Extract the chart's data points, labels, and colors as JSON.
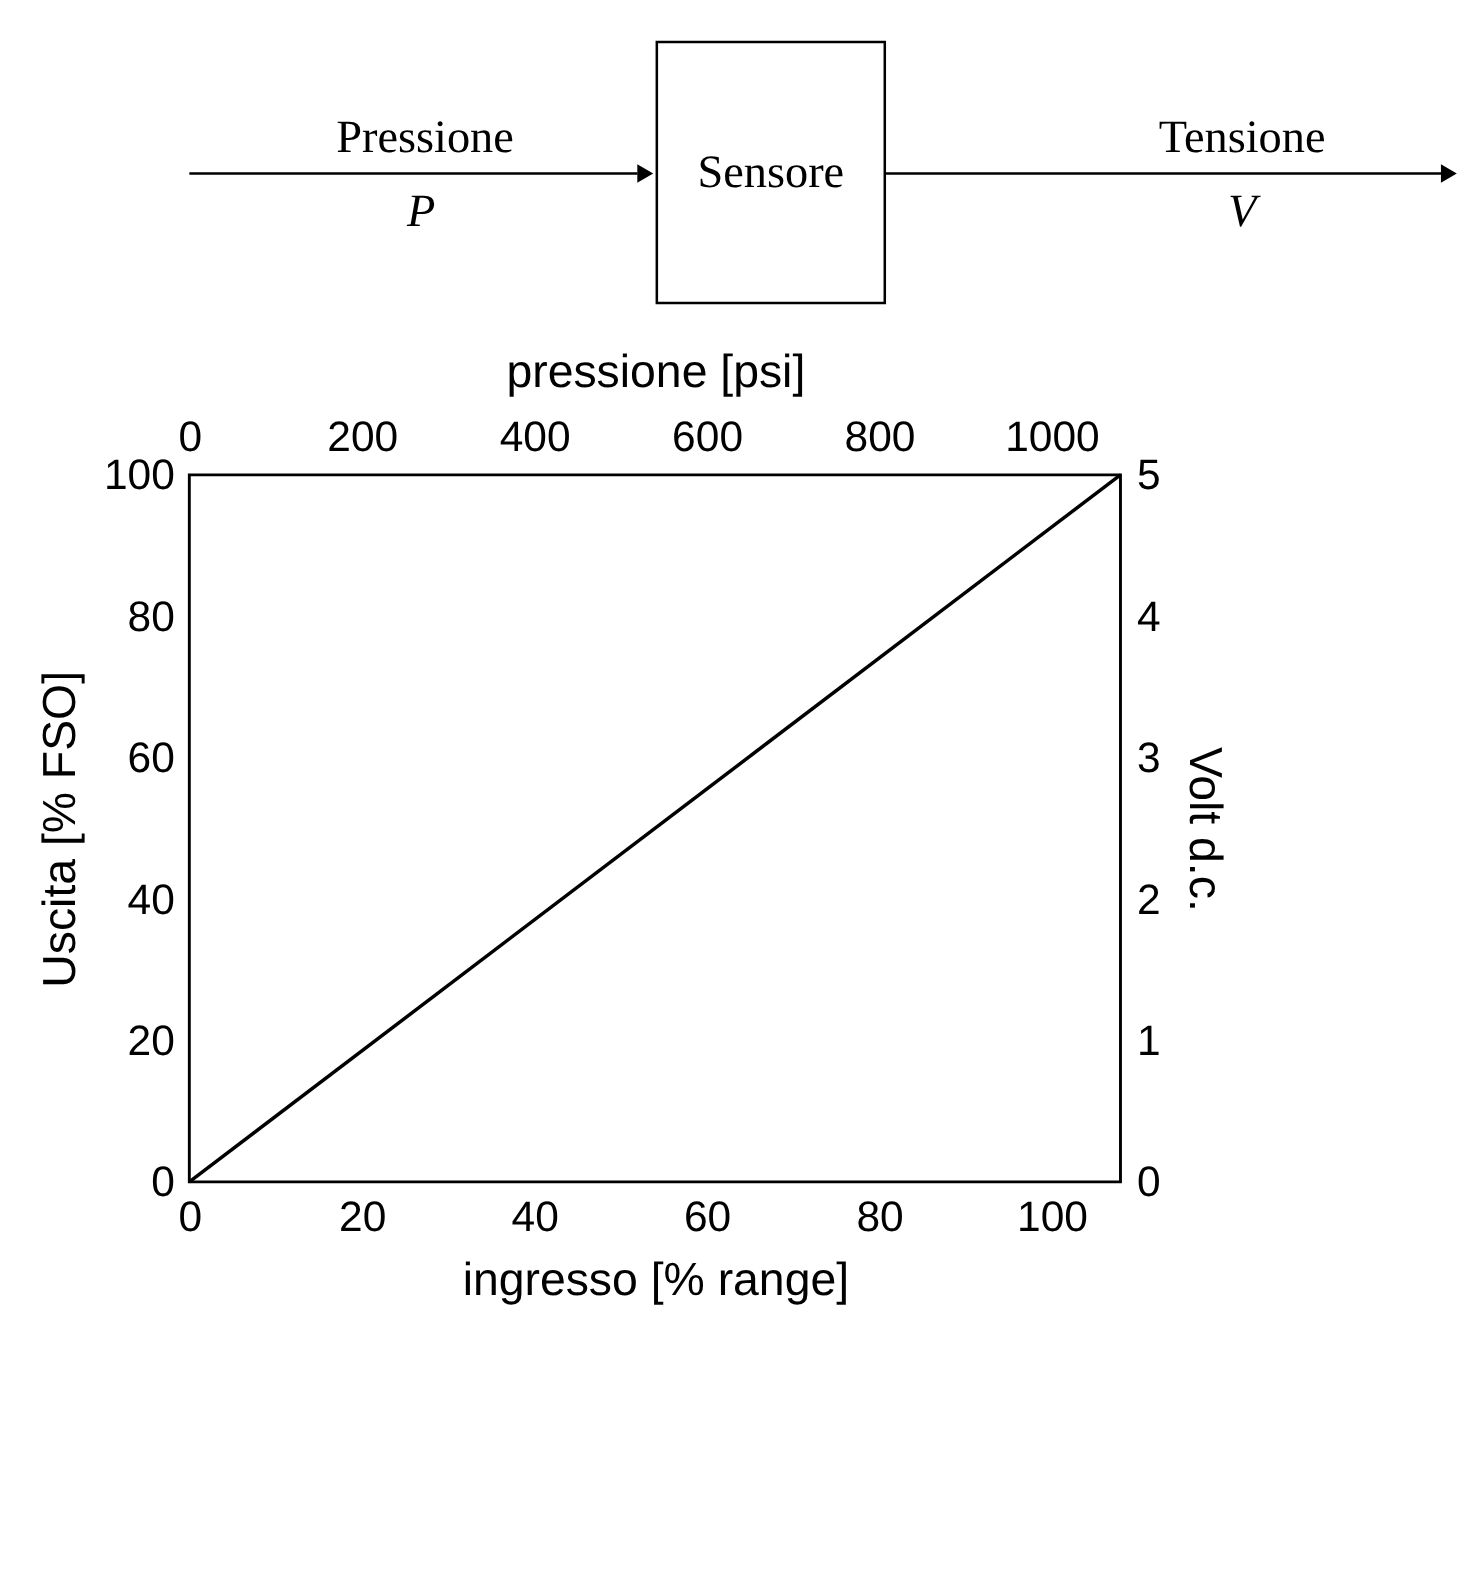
{
  "chart_data": {
    "type": "line",
    "xlabel": "ingresso [% range]",
    "ylabel": "Uscita [% FSO]",
    "y2label": "Volt d.c.",
    "x2label": "pressione [psi]",
    "annotations": [
      "Pressione",
      "P",
      "Sensore",
      "Tensione",
      "V"
    ],
    "series": [
      {
        "color": "#000000",
        "x": [
          0,
          108
        ],
        "values": [
          0,
          100
        ]
      }
    ],
    "xlim": [
      0,
      108
    ],
    "xticks": [
      0,
      20,
      40,
      60,
      80,
      100
    ],
    "x2lim": [
      0,
      1080
    ],
    "x2ticks": [
      0,
      200,
      400,
      600,
      800,
      1000
    ],
    "ylim": [
      0,
      100
    ],
    "yticks": [
      0,
      20,
      40,
      60,
      80,
      100
    ],
    "y2lim": [
      0,
      5
    ],
    "y2ticks": [
      0,
      1,
      2,
      3,
      4,
      5
    ],
    "grid": false,
    "marker": "none",
    "line_style": "solid"
  }
}
